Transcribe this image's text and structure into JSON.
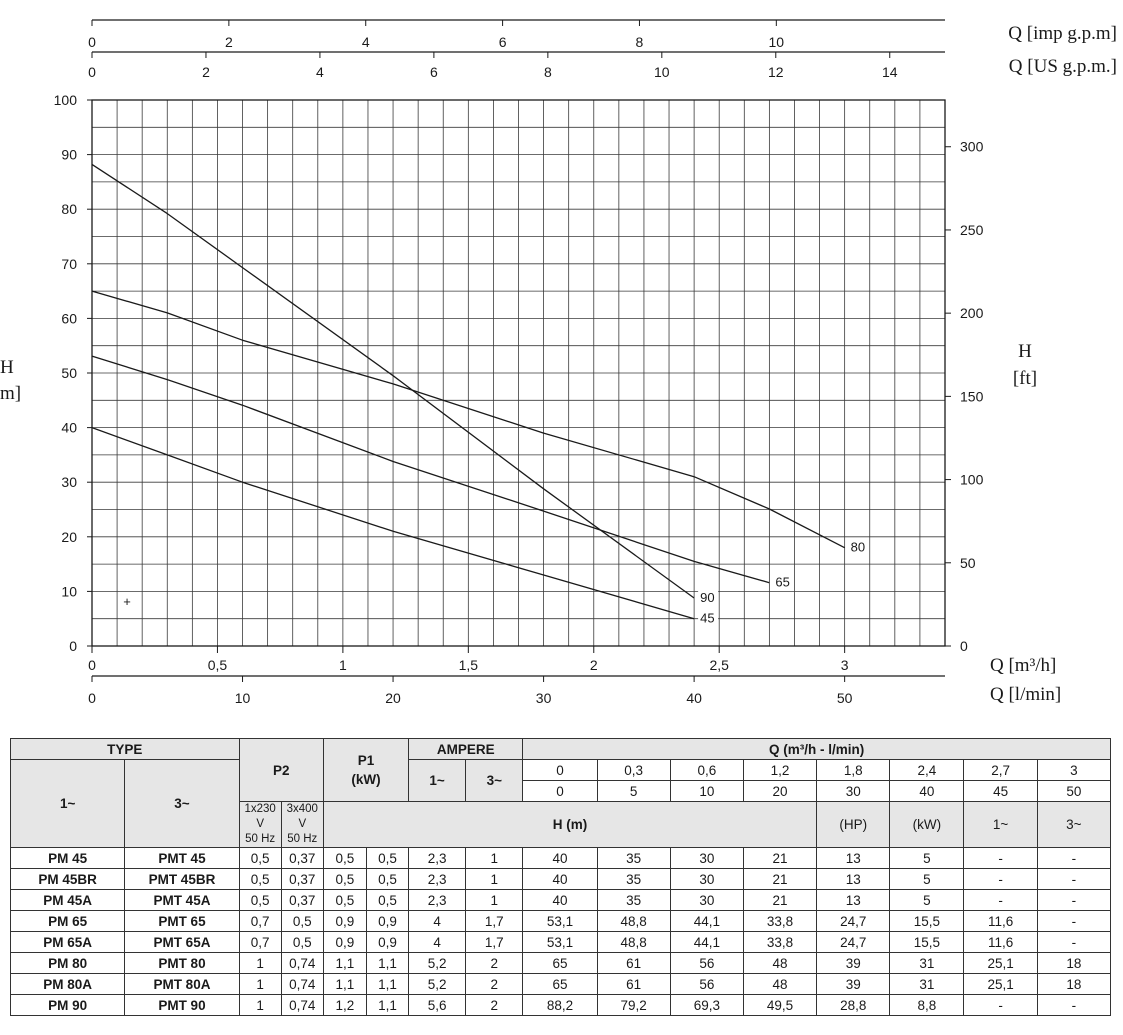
{
  "chart_data": {
    "type": "line",
    "x_axis_primary": {
      "label": "Q [m³/h]",
      "range": [
        0,
        3.4
      ],
      "ticks": [
        "0",
        "0,5",
        "1",
        "1,5",
        "2",
        "2,5",
        "3"
      ]
    },
    "x_axis_secondary": {
      "label": "Q [l/min]",
      "ticks": [
        "0",
        "10",
        "20",
        "30",
        "40",
        "50"
      ]
    },
    "x_axis_top_us": {
      "label": "Q [US g.p.m.]",
      "ticks": [
        "0",
        "2",
        "4",
        "6",
        "8",
        "10",
        "12",
        "14"
      ]
    },
    "x_axis_top_imp": {
      "label": "Q [imp g.p.m]",
      "ticks": [
        "0",
        "2",
        "4",
        "6",
        "8",
        "10"
      ]
    },
    "y_axis_left": {
      "label_1": "H",
      "label_2": "m]",
      "range": [
        0,
        100
      ],
      "ticks": [
        "0",
        "10",
        "20",
        "30",
        "40",
        "50",
        "60",
        "70",
        "80",
        "90",
        "100"
      ]
    },
    "y_axis_right": {
      "label_1": "H",
      "label_2": "[ft]",
      "ticks": [
        "0",
        "50",
        "100",
        "150",
        "200",
        "250",
        "300"
      ]
    },
    "grid": true,
    "marker": "+",
    "series": [
      {
        "name": "90",
        "x": [
          0,
          0.3,
          0.6,
          1.2,
          1.8,
          2.4
        ],
        "y": [
          88.2,
          79.2,
          69.3,
          49.5,
          28.8,
          8.8
        ]
      },
      {
        "name": "80",
        "x": [
          0,
          0.3,
          0.6,
          1.2,
          1.8,
          2.4,
          2.7,
          3.0
        ],
        "y": [
          65,
          61,
          56,
          48,
          39,
          31,
          25.1,
          18
        ]
      },
      {
        "name": "65",
        "x": [
          0,
          0.3,
          0.6,
          1.2,
          1.8,
          2.4,
          2.7
        ],
        "y": [
          53.1,
          48.8,
          44.1,
          33.8,
          24.7,
          15.5,
          11.6
        ]
      },
      {
        "name": "45",
        "x": [
          0,
          0.3,
          0.6,
          1.2,
          1.8,
          2.4
        ],
        "y": [
          40,
          35,
          30,
          21,
          13,
          5
        ]
      }
    ]
  },
  "table": {
    "type": "TYPE",
    "col_1ph": "1~",
    "col_3ph": "3~",
    "p2": "P2",
    "p1_line1": "P1",
    "p1_line2": "(kW)",
    "ampere": "AMPERE",
    "amp_1": "1~",
    "amp_3": "3~",
    "amp_1_sub1": "1x230 V",
    "amp_1_sub2": "50 Hz",
    "amp_3_sub1": "3x400 V",
    "amp_3_sub2": "50 Hz",
    "hp": "(HP)",
    "kw": "(kW)",
    "p1_1": "1~",
    "p1_3": "3~",
    "q_header": "Q (m³/h - l/min)",
    "q_m3h": [
      "0",
      "0,3",
      "0,6",
      "1,2",
      "1,8",
      "2,4",
      "2,7",
      "3"
    ],
    "q_lmin": [
      "0",
      "5",
      "10",
      "20",
      "30",
      "40",
      "45",
      "50"
    ],
    "h_label": "H (m)",
    "rows": [
      {
        "t1": "PM 45",
        "t3": "PMT 45",
        "hp": "0,5",
        "kw": "0,37",
        "p1a": "0,5",
        "p1b": "0,5",
        "a1": "2,3",
        "a3": "1",
        "h": [
          "40",
          "35",
          "30",
          "21",
          "13",
          "5",
          "-",
          "-"
        ]
      },
      {
        "t1": "PM 45BR",
        "t3": "PMT 45BR",
        "hp": "0,5",
        "kw": "0,37",
        "p1a": "0,5",
        "p1b": "0,5",
        "a1": "2,3",
        "a3": "1",
        "h": [
          "40",
          "35",
          "30",
          "21",
          "13",
          "5",
          "-",
          "-"
        ]
      },
      {
        "t1": "PM 45A",
        "t3": "PMT 45A",
        "hp": "0,5",
        "kw": "0,37",
        "p1a": "0,5",
        "p1b": "0,5",
        "a1": "2,3",
        "a3": "1",
        "h": [
          "40",
          "35",
          "30",
          "21",
          "13",
          "5",
          "-",
          "-"
        ]
      },
      {
        "t1": "PM 65",
        "t3": "PMT 65",
        "hp": "0,7",
        "kw": "0,5",
        "p1a": "0,9",
        "p1b": "0,9",
        "a1": "4",
        "a3": "1,7",
        "h": [
          "53,1",
          "48,8",
          "44,1",
          "33,8",
          "24,7",
          "15,5",
          "11,6",
          "-"
        ]
      },
      {
        "t1": "PM 65A",
        "t3": "PMT 65A",
        "hp": "0,7",
        "kw": "0,5",
        "p1a": "0,9",
        "p1b": "0,9",
        "a1": "4",
        "a3": "1,7",
        "h": [
          "53,1",
          "48,8",
          "44,1",
          "33,8",
          "24,7",
          "15,5",
          "11,6",
          "-"
        ]
      },
      {
        "t1": "PM 80",
        "t3": "PMT 80",
        "hp": "1",
        "kw": "0,74",
        "p1a": "1,1",
        "p1b": "1,1",
        "a1": "5,2",
        "a3": "2",
        "h": [
          "65",
          "61",
          "56",
          "48",
          "39",
          "31",
          "25,1",
          "18"
        ]
      },
      {
        "t1": "PM 80A",
        "t3": "PMT 80A",
        "hp": "1",
        "kw": "0,74",
        "p1a": "1,1",
        "p1b": "1,1",
        "a1": "5,2",
        "a3": "2",
        "h": [
          "65",
          "61",
          "56",
          "48",
          "39",
          "31",
          "25,1",
          "18"
        ]
      },
      {
        "t1": "PM 90",
        "t3": "PMT 90",
        "hp": "1",
        "kw": "0,74",
        "p1a": "1,2",
        "p1b": "1,1",
        "a1": "5,6",
        "a3": "2",
        "h": [
          "88,2",
          "79,2",
          "69,3",
          "49,5",
          "28,8",
          "8,8",
          "-",
          "-"
        ]
      }
    ]
  }
}
